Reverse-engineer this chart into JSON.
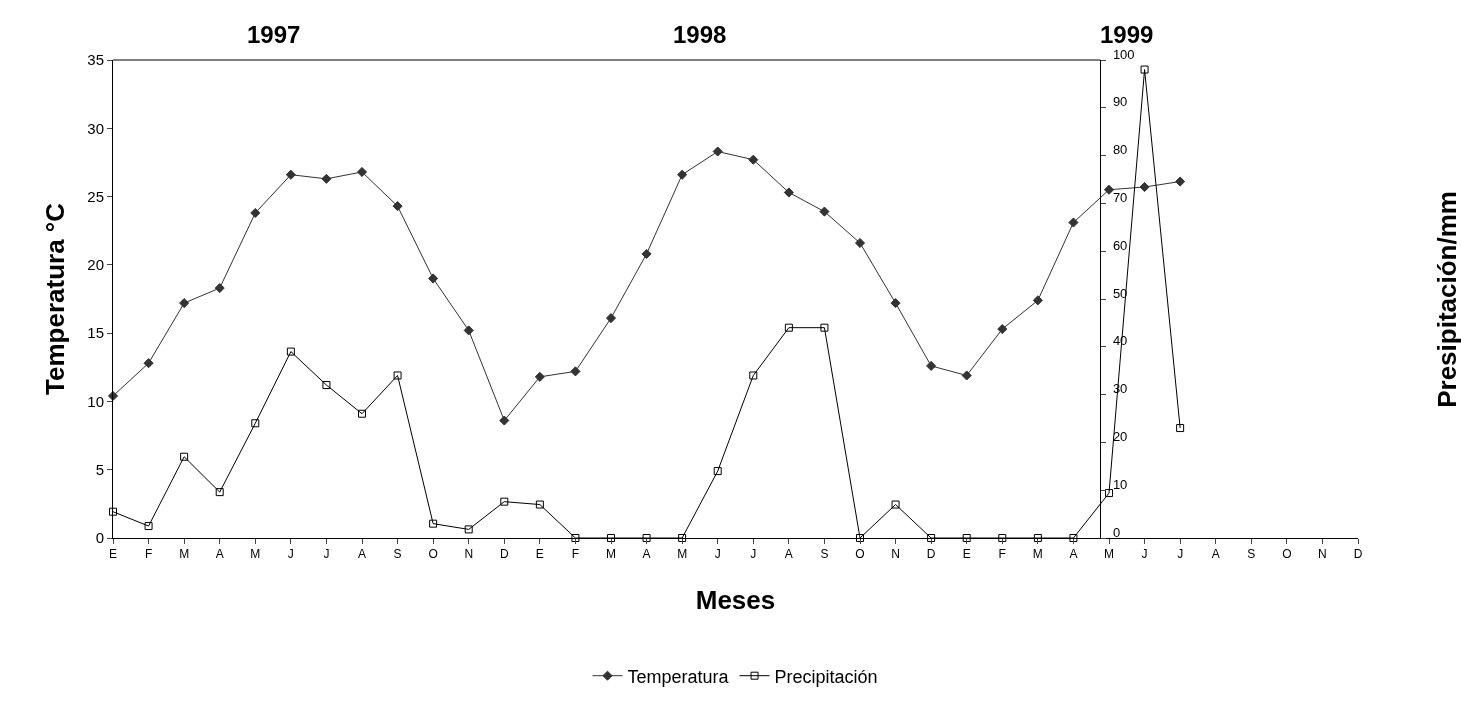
{
  "chart_data": {
    "type": "line",
    "xlabel": "Meses",
    "ylabel": "Temperatura °C",
    "y2label": "Presipitación/mm",
    "categories": [
      "E",
      "F",
      "M",
      "A",
      "M",
      "J",
      "J",
      "A",
      "S",
      "O",
      "N",
      "D",
      "E",
      "F",
      "M",
      "A",
      "M",
      "J",
      "J",
      "A",
      "S",
      "O",
      "N",
      "D",
      "E",
      "F",
      "M",
      "A",
      "M",
      "J",
      "J",
      "A",
      "S",
      "O",
      "N",
      "D"
    ],
    "series": [
      {
        "name": "Temperatura",
        "color": "#333333",
        "marker": "diamond",
        "values": [
          10.4,
          12.8,
          17.2,
          18.3,
          23.8,
          26.6,
          26.3,
          26.8,
          24.3,
          19.0,
          15.2,
          8.6,
          11.8,
          12.2,
          16.1,
          20.8,
          26.6,
          28.3,
          27.7,
          25.3,
          23.9,
          21.6,
          17.2,
          12.6,
          11.9,
          15.3,
          17.4,
          23.1,
          25.5,
          25.7,
          26.1,
          null,
          null,
          null,
          null,
          null
        ]
      },
      {
        "name": "Precipitación",
        "color": "#000000",
        "marker": "square",
        "axis": "y2",
        "values": [
          5.5,
          2.5,
          17,
          9.6,
          24,
          39,
          32,
          26,
          34,
          3,
          1.8,
          7.6,
          7,
          0,
          0,
          0,
          0,
          14,
          34,
          44,
          44,
          0,
          7,
          0,
          0,
          0,
          0,
          0,
          9.4,
          98,
          23,
          null,
          null,
          null,
          null,
          null
        ]
      }
    ],
    "annotations": [
      "1997",
      "1998",
      "1999"
    ],
    "ylim": [
      0,
      35
    ],
    "yticks": [
      0,
      5,
      10,
      15,
      20,
      25,
      30,
      35
    ],
    "y2lim": [
      0,
      100
    ],
    "y2ticks": [
      0,
      10,
      20,
      30,
      40,
      50,
      60,
      70,
      80,
      90,
      100
    ],
    "legend": "bottom"
  }
}
